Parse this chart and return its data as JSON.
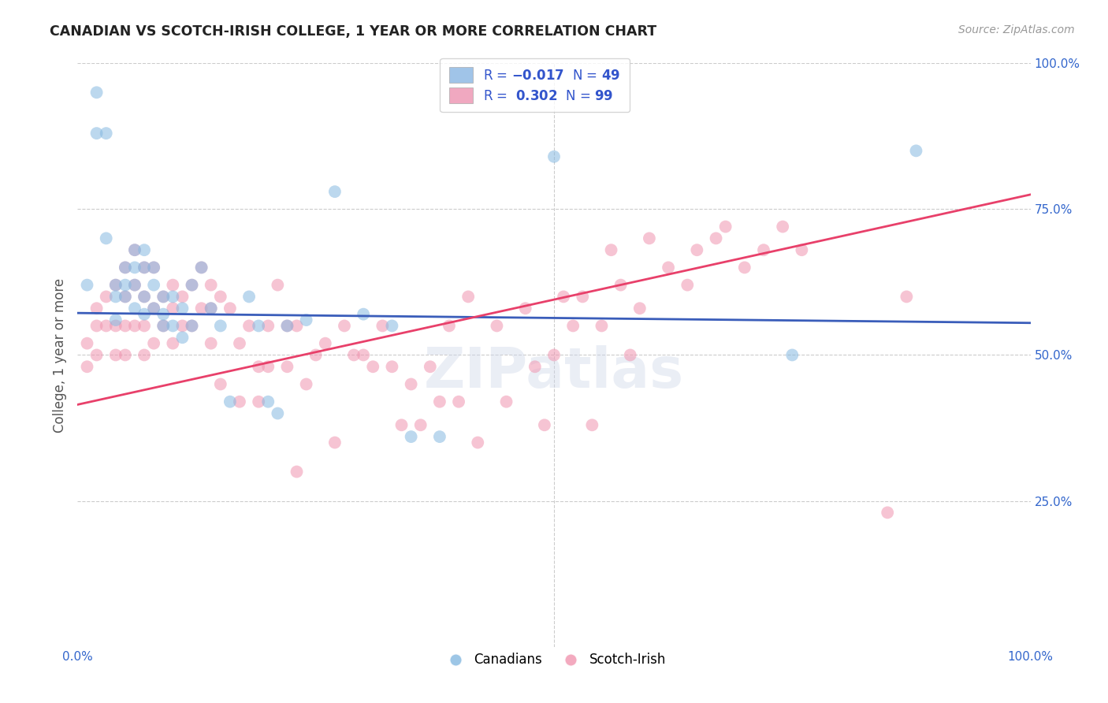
{
  "title": "CANADIAN VS SCOTCH-IRISH COLLEGE, 1 YEAR OR MORE CORRELATION CHART",
  "source": "Source: ZipAtlas.com",
  "ylabel": "College, 1 year or more",
  "xlim": [
    0.0,
    1.0
  ],
  "ylim": [
    0.0,
    1.0
  ],
  "background_color": "#ffffff",
  "grid_color": "#cccccc",
  "watermark": "ZIPatlas",
  "canadians_color": "#85b8e0",
  "scotch_irish_color": "#f095b0",
  "trendline_canadian_color": "#3a5dba",
  "trendline_scotch_irish_color": "#e8406a",
  "canadians_R": -0.017,
  "scotch_irish_R": 0.302,
  "canadians_N": 49,
  "scotch_irish_N": 99,
  "legend_blue_color": "#a0c4e8",
  "legend_pink_color": "#f0a8c0",
  "trendline_can_x0": 0.0,
  "trendline_can_x1": 1.0,
  "trendline_can_y0": 0.572,
  "trendline_can_y1": 0.555,
  "trendline_si_x0": 0.0,
  "trendline_si_x1": 1.0,
  "trendline_si_y0": 0.415,
  "trendline_si_y1": 0.775,
  "canadians_x": [
    0.01,
    0.02,
    0.02,
    0.03,
    0.03,
    0.04,
    0.04,
    0.04,
    0.05,
    0.05,
    0.05,
    0.06,
    0.06,
    0.06,
    0.06,
    0.07,
    0.07,
    0.07,
    0.07,
    0.08,
    0.08,
    0.08,
    0.09,
    0.09,
    0.09,
    0.1,
    0.1,
    0.11,
    0.11,
    0.12,
    0.12,
    0.13,
    0.14,
    0.15,
    0.16,
    0.18,
    0.19,
    0.2,
    0.21,
    0.22,
    0.24,
    0.27,
    0.3,
    0.33,
    0.35,
    0.38,
    0.5,
    0.75,
    0.88
  ],
  "canadians_y": [
    0.62,
    0.95,
    0.88,
    0.88,
    0.7,
    0.62,
    0.6,
    0.56,
    0.65,
    0.62,
    0.6,
    0.68,
    0.65,
    0.62,
    0.58,
    0.68,
    0.65,
    0.6,
    0.57,
    0.65,
    0.62,
    0.58,
    0.6,
    0.57,
    0.55,
    0.6,
    0.55,
    0.58,
    0.53,
    0.62,
    0.55,
    0.65,
    0.58,
    0.55,
    0.42,
    0.6,
    0.55,
    0.42,
    0.4,
    0.55,
    0.56,
    0.78,
    0.57,
    0.55,
    0.36,
    0.36,
    0.84,
    0.5,
    0.85
  ],
  "scotch_irish_x": [
    0.01,
    0.01,
    0.02,
    0.02,
    0.02,
    0.03,
    0.03,
    0.04,
    0.04,
    0.04,
    0.05,
    0.05,
    0.05,
    0.05,
    0.06,
    0.06,
    0.06,
    0.07,
    0.07,
    0.07,
    0.07,
    0.08,
    0.08,
    0.08,
    0.09,
    0.09,
    0.1,
    0.1,
    0.1,
    0.11,
    0.11,
    0.12,
    0.12,
    0.13,
    0.13,
    0.14,
    0.14,
    0.14,
    0.15,
    0.15,
    0.16,
    0.17,
    0.17,
    0.18,
    0.19,
    0.19,
    0.2,
    0.2,
    0.21,
    0.22,
    0.22,
    0.23,
    0.24,
    0.25,
    0.26,
    0.27,
    0.28,
    0.29,
    0.3,
    0.31,
    0.32,
    0.33,
    0.34,
    0.35,
    0.36,
    0.37,
    0.38,
    0.39,
    0.4,
    0.41,
    0.42,
    0.44,
    0.45,
    0.47,
    0.48,
    0.49,
    0.5,
    0.51,
    0.52,
    0.53,
    0.54,
    0.55,
    0.56,
    0.57,
    0.58,
    0.59,
    0.6,
    0.62,
    0.64,
    0.65,
    0.67,
    0.68,
    0.7,
    0.72,
    0.74,
    0.76,
    0.85,
    0.87,
    0.23
  ],
  "scotch_irish_y": [
    0.52,
    0.48,
    0.58,
    0.55,
    0.5,
    0.6,
    0.55,
    0.62,
    0.55,
    0.5,
    0.65,
    0.6,
    0.55,
    0.5,
    0.68,
    0.62,
    0.55,
    0.65,
    0.6,
    0.55,
    0.5,
    0.65,
    0.58,
    0.52,
    0.6,
    0.55,
    0.62,
    0.58,
    0.52,
    0.6,
    0.55,
    0.62,
    0.55,
    0.65,
    0.58,
    0.62,
    0.58,
    0.52,
    0.6,
    0.45,
    0.58,
    0.52,
    0.42,
    0.55,
    0.48,
    0.42,
    0.55,
    0.48,
    0.62,
    0.55,
    0.48,
    0.55,
    0.45,
    0.5,
    0.52,
    0.35,
    0.55,
    0.5,
    0.5,
    0.48,
    0.55,
    0.48,
    0.38,
    0.45,
    0.38,
    0.48,
    0.42,
    0.55,
    0.42,
    0.6,
    0.35,
    0.55,
    0.42,
    0.58,
    0.48,
    0.38,
    0.5,
    0.6,
    0.55,
    0.6,
    0.38,
    0.55,
    0.68,
    0.62,
    0.5,
    0.58,
    0.7,
    0.65,
    0.62,
    0.68,
    0.7,
    0.72,
    0.65,
    0.68,
    0.72,
    0.68,
    0.23,
    0.6,
    0.3
  ]
}
